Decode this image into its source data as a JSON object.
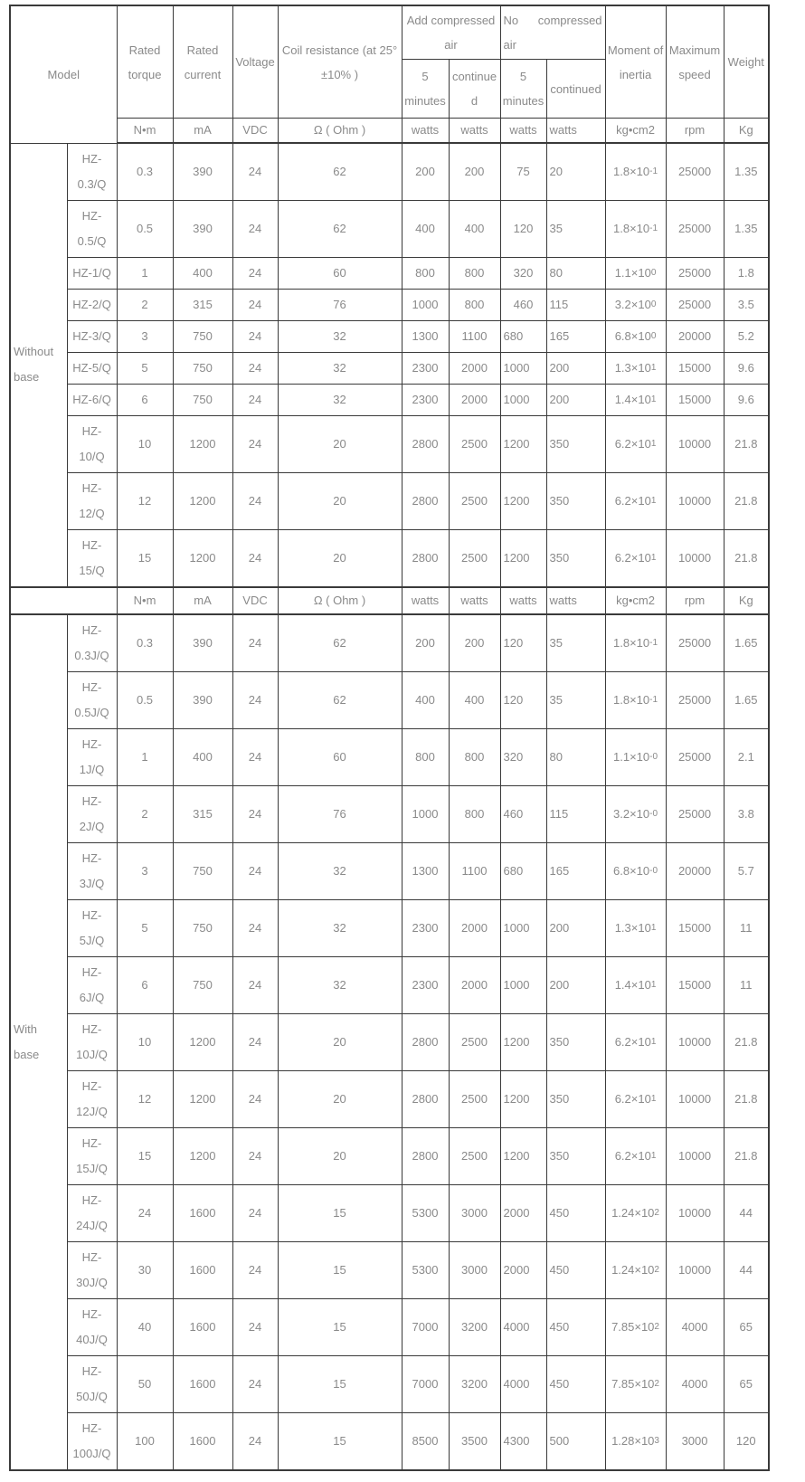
{
  "header": {
    "model": "Model",
    "rated_torque": "Rated torque",
    "rated_current": "Rated current",
    "voltage": "Voltage",
    "coil_resistance": "Coil resistance (at 25°±10% )",
    "add_air": "Add compressed air",
    "no_air": "No compressed air",
    "five_minutes": "5 minutes",
    "continued": "continued",
    "moment_of_inertia": "Moment of inertia",
    "maximum_speed": "Maximum speed",
    "weight": "Weight"
  },
  "units": {
    "torque": "N•m",
    "current": "mA",
    "voltage": "VDC",
    "coil": "Ω ( Ohm )",
    "watts": "watts",
    "moment": "kg•cm2",
    "speed": "rpm",
    "weight": "Kg"
  },
  "sections": [
    {
      "group": "Without base",
      "rows": [
        {
          "model": "HZ-0.3/Q",
          "torque": "0.3",
          "current": "390",
          "voltage": "24",
          "coil": "62",
          "w1": "200",
          "w2": "200",
          "w3": "75",
          "w4": "20",
          "moment": "1.8×10",
          "exp": "-1",
          "speed": "25000",
          "weight": "1.35",
          "w3_center": true
        },
        {
          "model": "HZ-0.5/Q",
          "torque": "0.5",
          "current": "390",
          "voltage": "24",
          "coil": "62",
          "w1": "400",
          "w2": "400",
          "w3": "120",
          "w4": "35",
          "moment": "1.8×10",
          "exp": "-1",
          "speed": "25000",
          "weight": "1.35",
          "w3_center": true
        },
        {
          "model": "HZ-1/Q",
          "torque": "1",
          "current": "400",
          "voltage": "24",
          "coil": "60",
          "w1": "800",
          "w2": "800",
          "w3": "320",
          "w4": "80",
          "moment": "1.1×10",
          "exp": "0",
          "speed": "25000",
          "weight": "1.8",
          "w3_center": true
        },
        {
          "model": "HZ-2/Q",
          "torque": "2",
          "current": "315",
          "voltage": "24",
          "coil": "76",
          "w1": "1000",
          "w2": "800",
          "w3": "460",
          "w4": "115",
          "moment": "3.2×10",
          "exp": "0",
          "speed": "25000",
          "weight": "3.5",
          "w3_center": true
        },
        {
          "model": "HZ-3/Q",
          "torque": "3",
          "current": "750",
          "voltage": "24",
          "coil": "32",
          "w1": "1300",
          "w2": "1100",
          "w3": "680",
          "w4": "165",
          "moment": "6.8×10",
          "exp": "0",
          "speed": "20000",
          "weight": "5.2"
        },
        {
          "model": "HZ-5/Q",
          "torque": "5",
          "current": "750",
          "voltage": "24",
          "coil": "32",
          "w1": "2300",
          "w2": "2000",
          "w3": "1000",
          "w4": "200",
          "moment": "1.3×10",
          "exp": "1",
          "speed": "15000",
          "weight": "9.6"
        },
        {
          "model": "HZ-6/Q",
          "torque": "6",
          "current": "750",
          "voltage": "24",
          "coil": "32",
          "w1": "2300",
          "w2": "2000",
          "w3": "1000",
          "w4": "200",
          "moment": "1.4×10",
          "exp": "1",
          "speed": "15000",
          "weight": "9.6"
        },
        {
          "model": "HZ-10/Q",
          "torque": "10",
          "current": "1200",
          "voltage": "24",
          "coil": "20",
          "w1": "2800",
          "w2": "2500",
          "w3": "1200",
          "w4": "350",
          "moment": "6.2×10",
          "exp": "1",
          "speed": "10000",
          "weight": "21.8"
        },
        {
          "model": "HZ-12/Q",
          "torque": "12",
          "current": "1200",
          "voltage": "24",
          "coil": "20",
          "w1": "2800",
          "w2": "2500",
          "w3": "1200",
          "w4": "350",
          "moment": "6.2×10",
          "exp": "1",
          "speed": "10000",
          "weight": "21.8"
        },
        {
          "model": "HZ-15/Q",
          "torque": "15",
          "current": "1200",
          "voltage": "24",
          "coil": "20",
          "w1": "2800",
          "w2": "2500",
          "w3": "1200",
          "w4": "350",
          "moment": "6.2×10",
          "exp": "1",
          "speed": "10000",
          "weight": "21.8"
        }
      ]
    },
    {
      "group": "With base",
      "rows": [
        {
          "model": "HZ-0.3J/Q",
          "torque": "0.3",
          "current": "390",
          "voltage": "24",
          "coil": "62",
          "w1": "200",
          "w2": "200",
          "w3": "120",
          "w4": "35",
          "moment": "1.8×10",
          "exp": "-1",
          "speed": "25000",
          "weight": "1.65"
        },
        {
          "model": "HZ-0.5J/Q",
          "torque": "0.5",
          "current": "390",
          "voltage": "24",
          "coil": "62",
          "w1": "400",
          "w2": "400",
          "w3": "120",
          "w4": "35",
          "moment": "1.8×10",
          "exp": "-1",
          "speed": "25000",
          "weight": "1.65"
        },
        {
          "model": "HZ-1J/Q",
          "torque": "1",
          "current": "400",
          "voltage": "24",
          "coil": "60",
          "w1": "800",
          "w2": "800",
          "w3": "320",
          "w4": "80",
          "moment": "1.1×10",
          "exp": "-0",
          "speed": "25000",
          "weight": "2.1"
        },
        {
          "model": "HZ-2J/Q",
          "torque": "2",
          "current": "315",
          "voltage": "24",
          "coil": "76",
          "w1": "1000",
          "w2": "800",
          "w3": "460",
          "w4": "115",
          "moment": "3.2×10",
          "exp": "-0",
          "speed": "25000",
          "weight": "3.8"
        },
        {
          "model": "HZ-3J/Q",
          "torque": "3",
          "current": "750",
          "voltage": "24",
          "coil": "32",
          "w1": "1300",
          "w2": "1100",
          "w3": "680",
          "w4": "165",
          "moment": "6.8×10",
          "exp": "-0",
          "speed": "20000",
          "weight": "5.7"
        },
        {
          "model": "HZ-5J/Q",
          "torque": "5",
          "current": "750",
          "voltage": "24",
          "coil": "32",
          "w1": "2300",
          "w2": "2000",
          "w3": "1000",
          "w4": "200",
          "moment": "1.3×10",
          "exp": "1",
          "speed": "15000",
          "weight": "11"
        },
        {
          "model": "HZ-6J/Q",
          "torque": "6",
          "current": "750",
          "voltage": "24",
          "coil": "32",
          "w1": "2300",
          "w2": "2000",
          "w3": "1000",
          "w4": "200",
          "moment": "1.4×10",
          "exp": "1",
          "speed": "15000",
          "weight": "11"
        },
        {
          "model": "HZ-10J/Q",
          "torque": "10",
          "current": "1200",
          "voltage": "24",
          "coil": "20",
          "w1": "2800",
          "w2": "2500",
          "w3": "1200",
          "w4": "350",
          "moment": "6.2×10",
          "exp": "1",
          "speed": "10000",
          "weight": "21.8"
        },
        {
          "model": "HZ-12J/Q",
          "torque": "12",
          "current": "1200",
          "voltage": "24",
          "coil": "20",
          "w1": "2800",
          "w2": "2500",
          "w3": "1200",
          "w4": "350",
          "moment": "6.2×10",
          "exp": "1",
          "speed": "10000",
          "weight": "21.8"
        },
        {
          "model": "HZ-15J/Q",
          "torque": "15",
          "current": "1200",
          "voltage": "24",
          "coil": "20",
          "w1": "2800",
          "w2": "2500",
          "w3": "1200",
          "w4": "350",
          "moment": "6.2×10",
          "exp": "1",
          "speed": "10000",
          "weight": "21.8"
        },
        {
          "model": "HZ-24J/Q",
          "torque": "24",
          "current": "1600",
          "voltage": "24",
          "coil": "15",
          "w1": "5300",
          "w2": "3000",
          "w3": "2000",
          "w4": "450",
          "moment": "1.24×10",
          "exp": "2",
          "speed": "10000",
          "weight": "44"
        },
        {
          "model": "HZ-30J/Q",
          "torque": "30",
          "current": "1600",
          "voltage": "24",
          "coil": "15",
          "w1": "5300",
          "w2": "3000",
          "w3": "2000",
          "w4": "450",
          "moment": "1.24×10",
          "exp": "2",
          "speed": "10000",
          "weight": "44"
        },
        {
          "model": "HZ-40J/Q",
          "torque": "40",
          "current": "1600",
          "voltage": "24",
          "coil": "15",
          "w1": "7000",
          "w2": "3200",
          "w3": "4000",
          "w4": "450",
          "moment": "7.85×10",
          "exp": "2",
          "speed": "4000",
          "weight": "65"
        },
        {
          "model": "HZ-50J/Q",
          "torque": "50",
          "current": "1600",
          "voltage": "24",
          "coil": "15",
          "w1": "7000",
          "w2": "3200",
          "w3": "4000",
          "w4": "450",
          "moment": "7.85×10",
          "exp": "2",
          "speed": "4000",
          "weight": "65"
        },
        {
          "model": "HZ-100J/Q",
          "torque": "100",
          "current": "1600",
          "voltage": "24",
          "coil": "15",
          "w1": "8500",
          "w2": "3500",
          "w3": "4300",
          "w4": "500",
          "moment": "1.28×10",
          "exp": "3",
          "speed": "3000",
          "weight": "120"
        }
      ]
    }
  ]
}
